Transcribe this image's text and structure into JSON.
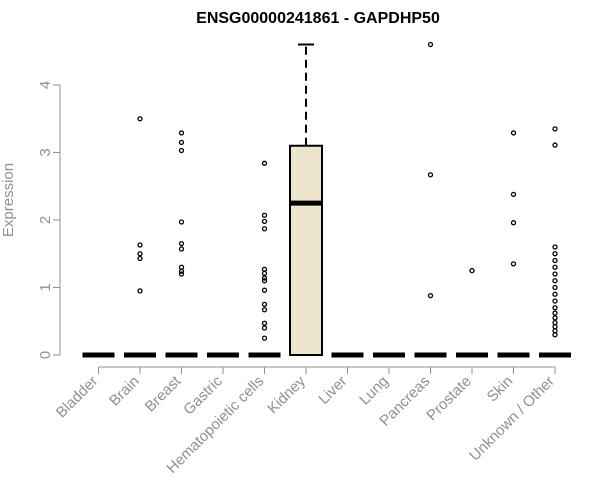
{
  "chart_data": {
    "type": "boxplot",
    "title": "ENSG00000241861 - GAPDHP50",
    "xlabel": "",
    "ylabel": "Expression",
    "ylim": [
      0,
      4.6
    ],
    "yticks": [
      0,
      1,
      2,
      3,
      4
    ],
    "grid": false,
    "colors": {
      "box_fill": "#ede6cc",
      "stroke": "#000000",
      "axis": "#909090"
    },
    "categories": [
      "Bladder",
      "Brain",
      "Breast",
      "Gastric",
      "Hematopoietic cells",
      "Kidney",
      "Liver",
      "Lung",
      "Pancreas",
      "Prostate",
      "Skin",
      "Unknown / Other"
    ],
    "boxes": [
      {
        "category": "Bladder",
        "q1": 0,
        "median": 0,
        "q3": 0,
        "whisker_low": 0,
        "whisker_high": 0,
        "outliers": []
      },
      {
        "category": "Brain",
        "q1": 0,
        "median": 0,
        "q3": 0,
        "whisker_low": 0,
        "whisker_high": 0,
        "outliers": [
          3.5,
          1.63,
          1.5,
          1.43,
          0.95
        ]
      },
      {
        "category": "Breast",
        "q1": 0,
        "median": 0,
        "q3": 0,
        "whisker_low": 0,
        "whisker_high": 0,
        "outliers": [
          3.29,
          3.15,
          3.03,
          1.97,
          1.65,
          1.57,
          1.3,
          1.24,
          1.2
        ]
      },
      {
        "category": "Gastric",
        "q1": 0,
        "median": 0,
        "q3": 0,
        "whisker_low": 0,
        "whisker_high": 0,
        "outliers": []
      },
      {
        "category": "Hematopoietic cells",
        "q1": 0,
        "median": 0,
        "q3": 0,
        "whisker_low": 0,
        "whisker_high": 0,
        "outliers": [
          2.84,
          2.07,
          1.98,
          1.87,
          1.27,
          1.21,
          1.14,
          1.1,
          0.96,
          0.75,
          0.67,
          0.47,
          0.4,
          0.25
        ]
      },
      {
        "category": "Kidney",
        "q1": 0,
        "median": 2.25,
        "q3": 3.1,
        "whisker_low": 0,
        "whisker_high": 4.6,
        "outliers": []
      },
      {
        "category": "Liver",
        "q1": 0,
        "median": 0,
        "q3": 0,
        "whisker_low": 0,
        "whisker_high": 0,
        "outliers": []
      },
      {
        "category": "Lung",
        "q1": 0,
        "median": 0,
        "q3": 0,
        "whisker_low": 0,
        "whisker_high": 0,
        "outliers": []
      },
      {
        "category": "Pancreas",
        "q1": 0,
        "median": 0,
        "q3": 0,
        "whisker_low": 0,
        "whisker_high": 0,
        "outliers": [
          4.6,
          2.67,
          0.88
        ]
      },
      {
        "category": "Prostate",
        "q1": 0,
        "median": 0,
        "q3": 0,
        "whisker_low": 0,
        "whisker_high": 0,
        "outliers": [
          1.25
        ]
      },
      {
        "category": "Skin",
        "q1": 0,
        "median": 0,
        "q3": 0,
        "whisker_low": 0,
        "whisker_high": 0,
        "outliers": [
          3.29,
          2.38,
          1.96,
          1.35
        ]
      },
      {
        "category": "Unknown / Other",
        "q1": 0,
        "median": 0,
        "q3": 0,
        "whisker_low": 0,
        "whisker_high": 0,
        "outliers": [
          3.35,
          3.11,
          1.6,
          1.5,
          1.4,
          1.3,
          1.2,
          1.1,
          1.0,
          0.9,
          0.8,
          0.7,
          0.62,
          0.55,
          0.48,
          0.42,
          0.36,
          0.3
        ]
      }
    ]
  }
}
